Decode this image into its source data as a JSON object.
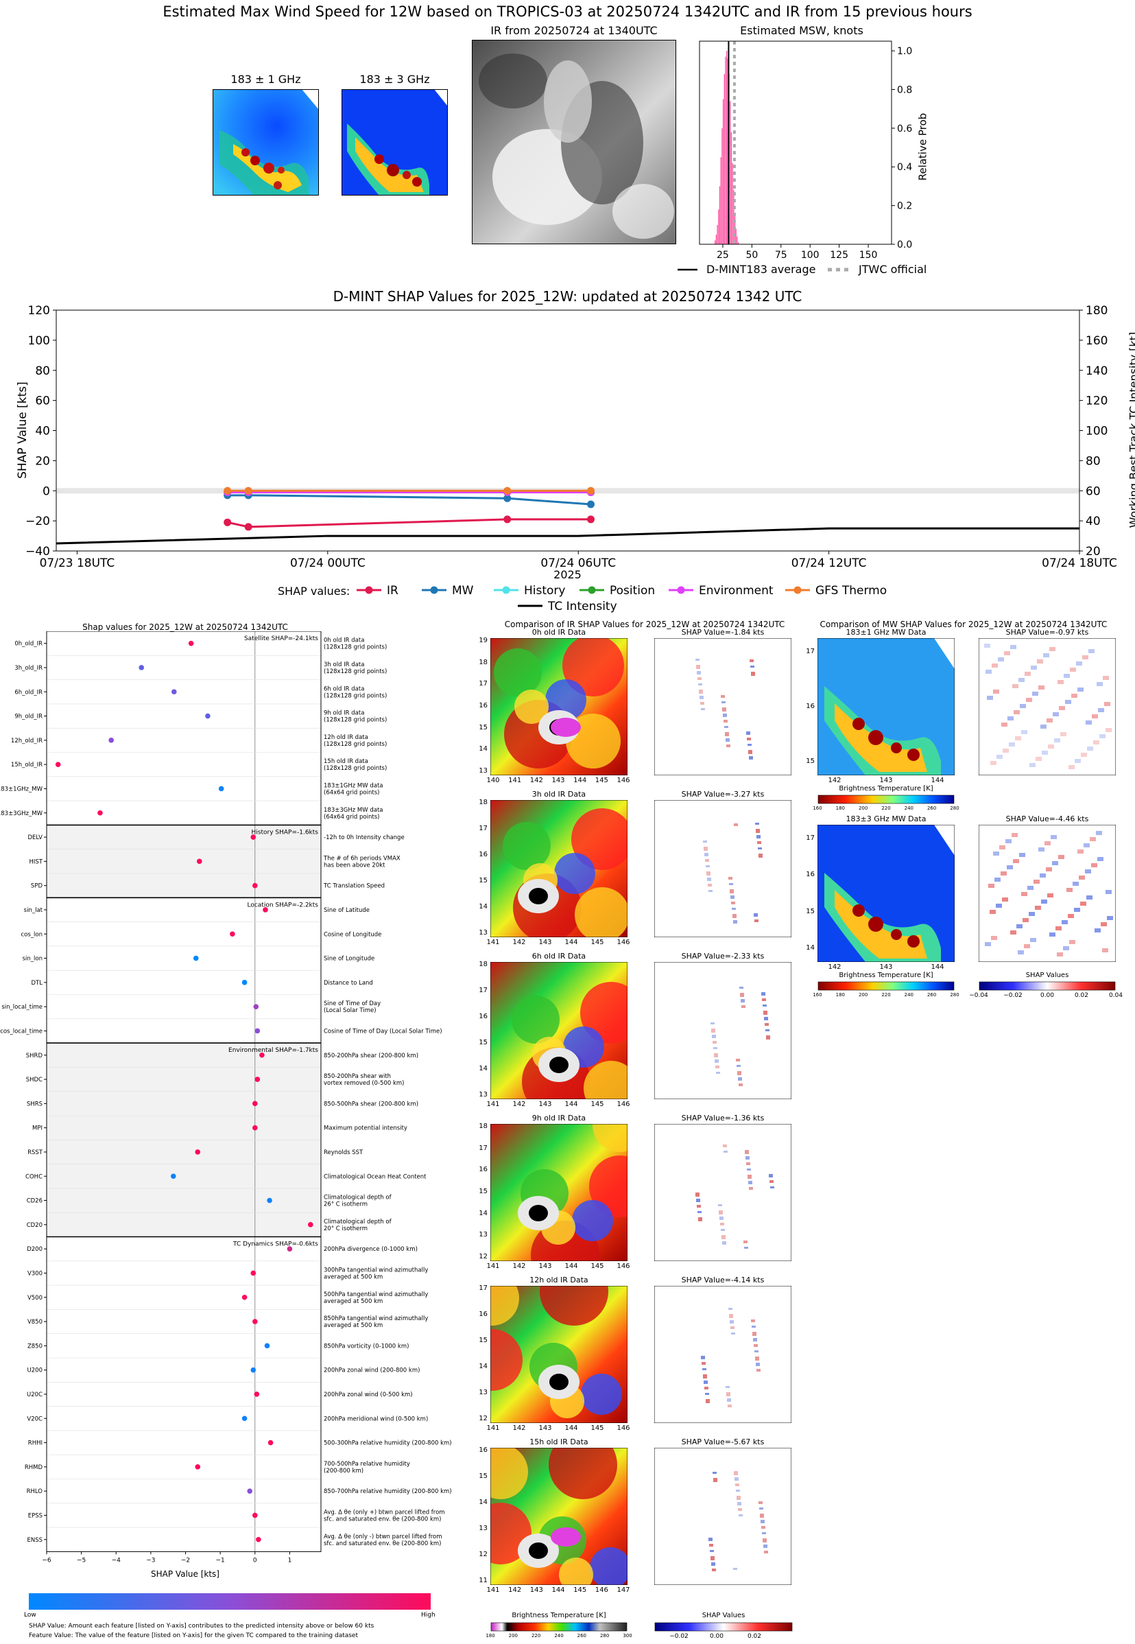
{
  "header": {
    "title": "Estimated Max Wind Speed for 12W based on TROPICS-03 at 20250724 1342UTC and IR from 15 previous hours"
  },
  "panels": {
    "mw1_label": "183 ± 1 GHz",
    "mw3_label": "183 ± 3 GHz",
    "ir_title": "IR from 20250724 at 1340UTC"
  },
  "colors": {
    "ir": "#e0194f",
    "mw": "#1f77b4",
    "history": "#4ee3e8",
    "position": "#2ca02c",
    "environment": "#e040fb",
    "gfs": "#f07c2c",
    "intensity": "#000000",
    "hist_bar": "#ff4fa0",
    "low": "#0088ff",
    "high": "#ff0a5a"
  },
  "chart_data": [
    {
      "type": "bar",
      "title": "Estimated MSW, knots",
      "ylabel": "Relative Prob",
      "x_ticks": [
        "25",
        "50",
        "75",
        "100",
        "125",
        "150"
      ],
      "y_ticks": [
        "0.0",
        "0.2",
        "0.4",
        "0.6",
        "0.8",
        "1.0"
      ],
      "xlim": [
        5,
        170
      ],
      "ylim": [
        0,
        1.05
      ],
      "bin_width": 1,
      "bins": [
        18,
        19,
        20,
        21,
        22,
        23,
        24,
        25,
        26,
        27,
        28,
        29,
        30,
        31,
        32,
        33,
        34,
        35,
        36,
        37,
        38
      ],
      "values": [
        0.02,
        0.05,
        0.1,
        0.18,
        0.3,
        0.45,
        0.6,
        0.75,
        0.88,
        0.97,
        1.0,
        0.96,
        0.88,
        0.74,
        0.58,
        0.42,
        0.28,
        0.16,
        0.08,
        0.04,
        0.01
      ],
      "dmint_average": 30,
      "jtwc_official": 35,
      "legend": [
        "D-MINT183 average",
        "JTWC official"
      ]
    },
    {
      "type": "line",
      "title": "D-MINT SHAP Values for 2025_12W: updated at 20250724 1342 UTC",
      "ylabel": "SHAP Value [kts]",
      "y2label": "Working Best Track TC Intensity [kt]",
      "xlabel": "2025",
      "x_ticks": [
        "07/23 18UTC",
        "07/24 00UTC",
        "07/24 06UTC",
        "07/24 12UTC",
        "07/24 18UTC"
      ],
      "ylim": [
        -40,
        120
      ],
      "y_ticks": [
        "120",
        "100",
        "80",
        "60",
        "40",
        "20",
        "0",
        "−20",
        "−40"
      ],
      "y2lim": [
        20,
        180
      ],
      "y2_ticks": [
        "180",
        "160",
        "140",
        "120",
        "100",
        "80",
        "60",
        "40",
        "20"
      ],
      "legend_title": "SHAP values:",
      "series": [
        {
          "name": "IR",
          "x": [
            3.6,
            4.1,
            10.3,
            12.3
          ],
          "y": [
            -21,
            -24,
            -19,
            -19
          ]
        },
        {
          "name": "MW",
          "x": [
            3.6,
            4.1,
            10.3,
            12.3
          ],
          "y": [
            -3,
            -3,
            -5,
            -9
          ]
        },
        {
          "name": "History",
          "x": [
            3.6,
            4.1,
            10.3,
            12.3
          ],
          "y": [
            -1,
            -1,
            -1,
            -1
          ]
        },
        {
          "name": "Position",
          "x": [
            3.6,
            4.1,
            10.3,
            12.3
          ],
          "y": [
            -1,
            -1,
            -1,
            -1
          ]
        },
        {
          "name": "Environment",
          "x": [
            3.6,
            4.1,
            10.3,
            12.3
          ],
          "y": [
            -1,
            -1,
            -1,
            -1
          ]
        },
        {
          "name": "GFS Thermo",
          "x": [
            3.6,
            4.1,
            10.3,
            12.3
          ],
          "y": [
            0,
            0,
            0,
            0
          ]
        },
        {
          "name": "TC Intensity",
          "x": [
            -0.5,
            6,
            12,
            18,
            24
          ],
          "y": [
            25,
            30,
            30,
            35,
            35
          ]
        }
      ]
    },
    {
      "type": "scatter",
      "title": "Shap values for 2025_12W at 20250724 1342UTC",
      "xlabel": "SHAP Value [kts]",
      "x_ticks": [
        "−6",
        "−5",
        "−4",
        "−3",
        "−2",
        "−1",
        "0",
        "1"
      ],
      "xlim": [
        -6,
        1.9
      ],
      "groups": [
        {
          "label": "Satellite SHAP=-24.1kts",
          "shaded": false,
          "rows": [
            {
              "name": "0h_old_IR",
              "desc": [
                "0h old IR data",
                "(128x128 grid points)"
              ],
              "shap": -1.84,
              "feat": 1.0
            },
            {
              "name": "3h_old_IR",
              "desc": [
                "3h old IR data",
                "(128x128 grid points)"
              ],
              "shap": -3.27,
              "feat": 0.35
            },
            {
              "name": "6h_old_IR",
              "desc": [
                "6h old IR data",
                "(128x128 grid points)"
              ],
              "shap": -2.33,
              "feat": 0.4
            },
            {
              "name": "9h_old_IR",
              "desc": [
                "9h old IR data",
                "(128x128 grid points)"
              ],
              "shap": -1.36,
              "feat": 0.35
            },
            {
              "name": "12h_old_IR",
              "desc": [
                "12h old IR data",
                "(128x128 grid points)"
              ],
              "shap": -4.14,
              "feat": 0.5
            },
            {
              "name": "15h_old_IR",
              "desc": [
                "15h old IR data",
                "(128x128 grid points)"
              ],
              "shap": -5.67,
              "feat": 1.0
            },
            {
              "name": "183±1GHz_MW",
              "desc": [
                "183±1GHz MW data",
                "(64x64 grid points)"
              ],
              "shap": -0.97,
              "feat": 0.05
            },
            {
              "name": "183±3GHz_MW",
              "desc": [
                "183±3GHz MW data",
                "(64x64 grid points)"
              ],
              "shap": -4.46,
              "feat": 1.0
            }
          ]
        },
        {
          "label": "History SHAP=-1.6kts",
          "shaded": true,
          "rows": [
            {
              "name": "DELV",
              "desc": [
                "-12h to 0h Intensity change"
              ],
              "shap": -0.05,
              "feat": 1.0
            },
            {
              "name": "HIST",
              "desc": [
                "The # of 6h periods VMAX",
                "has been above 20kt"
              ],
              "shap": -1.6,
              "feat": 1.0
            },
            {
              "name": "SPD",
              "desc": [
                "TC Translation Speed"
              ],
              "shap": 0.0,
              "feat": 1.0
            }
          ]
        },
        {
          "label": "Location SHAP=-2.2kts",
          "shaded": false,
          "rows": [
            {
              "name": "sin_lat",
              "desc": [
                "Sine of Latitude"
              ],
              "shap": 0.3,
              "feat": 1.0
            },
            {
              "name": "cos_lon",
              "desc": [
                "Cosine of Longitude"
              ],
              "shap": -0.65,
              "feat": 1.0
            },
            {
              "name": "sin_lon",
              "desc": [
                "Sine of Longitude"
              ],
              "shap": -1.7,
              "feat": 0.0
            },
            {
              "name": "DTL",
              "desc": [
                "Distance to Land"
              ],
              "shap": -0.3,
              "feat": 0.0
            },
            {
              "name": "sin_local_time",
              "desc": [
                "Sine of Time of Day",
                "(Local Solar Time)"
              ],
              "shap": 0.03,
              "feat": 0.6
            },
            {
              "name": "cos_local_time",
              "desc": [
                "Cosine of Time of Day (Local Solar Time)"
              ],
              "shap": 0.07,
              "feat": 0.5
            }
          ]
        },
        {
          "label": "Environmental SHAP=-1.7kts",
          "shaded": true,
          "rows": [
            {
              "name": "SHRD",
              "desc": [
                "850-200hPa shear (200-800 km)"
              ],
              "shap": 0.2,
              "feat": 1.0
            },
            {
              "name": "SHDC",
              "desc": [
                "850-200hPa shear with",
                "vortex removed (0-500 km)"
              ],
              "shap": 0.07,
              "feat": 1.0
            },
            {
              "name": "SHRS",
              "desc": [
                "850-500hPa shear (200-800 km)"
              ],
              "shap": 0.0,
              "feat": 1.0
            },
            {
              "name": "MPI",
              "desc": [
                "Maximum potential intensity"
              ],
              "shap": 0.0,
              "feat": 1.0
            },
            {
              "name": "RSST",
              "desc": [
                "Reynolds SST"
              ],
              "shap": -1.65,
              "feat": 1.0
            },
            {
              "name": "COHC",
              "desc": [
                "Climatological Ocean Heat Content"
              ],
              "shap": -2.35,
              "feat": 0.05
            },
            {
              "name": "CD26",
              "desc": [
                "Climatological depth of",
                "26° C isotherm"
              ],
              "shap": 0.42,
              "feat": 0.05
            },
            {
              "name": "CD20",
              "desc": [
                "Climatological depth of",
                "20° C isotherm"
              ],
              "shap": 1.6,
              "feat": 1.0
            }
          ]
        },
        {
          "label": "TC Dynamics SHAP=-0.6kts",
          "shaded": false,
          "rows": [
            {
              "name": "D200",
              "desc": [
                "200hPa divergence (0-1000 km)"
              ],
              "shap": 1.0,
              "feat": 0.8
            },
            {
              "name": "V300",
              "desc": [
                "300hPa tangential wind azimuthally",
                "averaged at 500 km"
              ],
              "shap": -0.05,
              "feat": 1.0
            },
            {
              "name": "V500",
              "desc": [
                "500hPa tangential wind azimuthally",
                "averaged at 500 km"
              ],
              "shap": -0.3,
              "feat": 1.0
            },
            {
              "name": "V850",
              "desc": [
                "850hPa tangential wind azimuthally",
                "averaged at 500 km"
              ],
              "shap": 0.0,
              "feat": 1.0
            },
            {
              "name": "Z850",
              "desc": [
                "850hPa vorticity (0-1000 km)"
              ],
              "shap": 0.35,
              "feat": 0.05
            },
            {
              "name": "U200",
              "desc": [
                "200hPa zonal wind (200-800 km)"
              ],
              "shap": -0.05,
              "feat": 0.05
            },
            {
              "name": "U20C",
              "desc": [
                "200hPa zonal wind (0-500 km)"
              ],
              "shap": 0.05,
              "feat": 1.0
            },
            {
              "name": "V20C",
              "desc": [
                "200hPa meridional wind (0-500 km)"
              ],
              "shap": -0.3,
              "feat": 0.05
            },
            {
              "name": "RHHI",
              "desc": [
                "500-300hPa relative humidity (200-800 km)"
              ],
              "shap": 0.45,
              "feat": 1.0
            },
            {
              "name": "RHMD",
              "desc": [
                "700-500hPa relative humidity",
                "(200-800 km)"
              ],
              "shap": -1.65,
              "feat": 1.0
            },
            {
              "name": "RHLO",
              "desc": [
                "850-700hPa relative humidity (200-800 km)"
              ],
              "shap": -0.15,
              "feat": 0.5
            },
            {
              "name": "EPSS",
              "desc": [
                "Avg. Δ θe (only +) btwn parcel lifted from",
                "sfc. and saturated env. θe (200-800 km)"
              ],
              "shap": 0.0,
              "feat": 1.0
            },
            {
              "name": "ENSS",
              "desc": [
                "Avg. Δ θe (only -) btwn parcel lifted from",
                "sfc. and saturated env. θe (200-800 km)"
              ],
              "shap": 0.1,
              "feat": 1.0
            }
          ]
        }
      ]
    }
  ],
  "colorbar_low": "Low",
  "colorbar_high": "High",
  "footnotes": [
    "SHAP Value: Amount each feature [listed on Y-axis] contributes to the predicted intensity above or below 60 kts",
    "Feature Value: The value of the feature [listed on Y-axis] for the given TC compared to the training dataset"
  ],
  "ir_compare": {
    "title": "Comparison of IR SHAP Values for 2025_12W at 20250724 1342UTC",
    "rows": [
      {
        "data_title": "0h old IR Data",
        "shap_title": "SHAP Value=-1.84 kts",
        "yticks": [
          "19",
          "18",
          "17",
          "16",
          "15",
          "14",
          "13"
        ],
        "xticks": [
          "140",
          "141",
          "142",
          "143",
          "144",
          "145",
          "146"
        ]
      },
      {
        "data_title": "3h old IR Data",
        "shap_title": "SHAP Value=-3.27 kts",
        "yticks": [
          "18",
          "17",
          "16",
          "15",
          "14",
          "13"
        ],
        "xticks": [
          "141",
          "142",
          "143",
          "144",
          "145",
          "146"
        ]
      },
      {
        "data_title": "6h old IR Data",
        "shap_title": "SHAP Value=-2.33 kts",
        "yticks": [
          "18",
          "17",
          "16",
          "15",
          "14",
          "13"
        ],
        "xticks": [
          "141",
          "142",
          "143",
          "144",
          "145",
          "146"
        ]
      },
      {
        "data_title": "9h old IR Data",
        "shap_title": "SHAP Value=-1.36 kts",
        "yticks": [
          "18",
          "17",
          "16",
          "15",
          "14",
          "13",
          "12"
        ],
        "xticks": [
          "141",
          "142",
          "143",
          "144",
          "145",
          "146"
        ]
      },
      {
        "data_title": "12h old IR Data",
        "shap_title": "SHAP Value=-4.14 kts",
        "yticks": [
          "17",
          "16",
          "15",
          "14",
          "13",
          "12"
        ],
        "xticks": [
          "141",
          "142",
          "143",
          "144",
          "145",
          "146"
        ]
      },
      {
        "data_title": "15h old IR Data",
        "shap_title": "SHAP Value=-5.67 kts",
        "yticks": [
          "16",
          "15",
          "14",
          "13",
          "12",
          "11"
        ],
        "xticks": [
          "141",
          "142",
          "143",
          "144",
          "145",
          "146",
          "147"
        ]
      }
    ],
    "bt_label": "Brightness Temperature [K]",
    "bt_ticks": [
      "180",
      "200",
      "220",
      "240",
      "260",
      "280",
      "300"
    ],
    "shap_label": "SHAP Values",
    "shap_ticks": [
      "−0.02",
      "0.00",
      "0.02"
    ]
  },
  "mw_compare": {
    "title": "Comparison of MW SHAP Values for 2025_12W at 20250724 1342UTC",
    "rows": [
      {
        "data_title": "183±1 GHz MW Data",
        "shap_title": "SHAP Value=-0.97 kts",
        "yticks": [
          "17",
          "16",
          "15"
        ],
        "xticks": [
          "142",
          "143",
          "144"
        ]
      },
      {
        "data_title": "183±3 GHz MW Data",
        "shap_title": "SHAP Value=-4.46 kts",
        "yticks": [
          "17",
          "16",
          "15",
          "14"
        ],
        "xticks": [
          "142",
          "143",
          "144"
        ]
      }
    ],
    "bt_label": "Brightness Temperature [K]",
    "bt_ticks": [
      "160",
      "180",
      "200",
      "220",
      "240",
      "260",
      "280"
    ],
    "shap_label": "SHAP Values",
    "shap_ticks": [
      "−0.04",
      "−0.02",
      "0.00",
      "0.02",
      "0.04"
    ]
  }
}
